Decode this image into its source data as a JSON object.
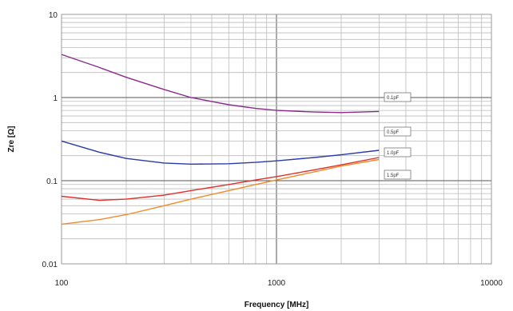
{
  "chart_data": {
    "type": "line",
    "title": "",
    "xlabel": "Frequency [MHz]",
    "ylabel": "Zre [Ω]",
    "x_scale": "log",
    "y_scale": "log",
    "xlim": [
      100,
      10000
    ],
    "ylim": [
      0.01,
      10
    ],
    "x_ticks": [
      "100",
      "1000",
      "10000"
    ],
    "y_ticks": [
      "0.01",
      "0.1",
      "1",
      "10"
    ],
    "grid": true,
    "series": [
      {
        "name": "0.1pF",
        "color": "#8a2a8c",
        "x": [
          100,
          150,
          200,
          300,
          400,
          600,
          800,
          1000,
          1500,
          2000,
          3000
        ],
        "y": [
          3.3,
          2.3,
          1.75,
          1.25,
          1.0,
          0.82,
          0.74,
          0.7,
          0.67,
          0.66,
          0.68
        ]
      },
      {
        "name": "0.5pF",
        "color": "#2a3aa8",
        "x": [
          100,
          150,
          200,
          300,
          400,
          600,
          800,
          1000,
          1500,
          2000,
          3000
        ],
        "y": [
          0.3,
          0.22,
          0.185,
          0.163,
          0.158,
          0.16,
          0.166,
          0.173,
          0.19,
          0.205,
          0.232
        ]
      },
      {
        "name": "1.0pF",
        "color": "#e0302a",
        "x": [
          100,
          150,
          200,
          300,
          400,
          600,
          800,
          1000,
          1500,
          2000,
          3000
        ],
        "y": [
          0.065,
          0.058,
          0.06,
          0.067,
          0.076,
          0.09,
          0.102,
          0.112,
          0.135,
          0.155,
          0.19
        ]
      },
      {
        "name": "1.5pF",
        "color": "#f08a2a",
        "x": [
          100,
          150,
          200,
          300,
          400,
          600,
          800,
          1000,
          1500,
          2000,
          3000
        ],
        "y": [
          0.03,
          0.034,
          0.039,
          0.05,
          0.06,
          0.076,
          0.09,
          0.102,
          0.128,
          0.15,
          0.18
        ]
      }
    ]
  }
}
